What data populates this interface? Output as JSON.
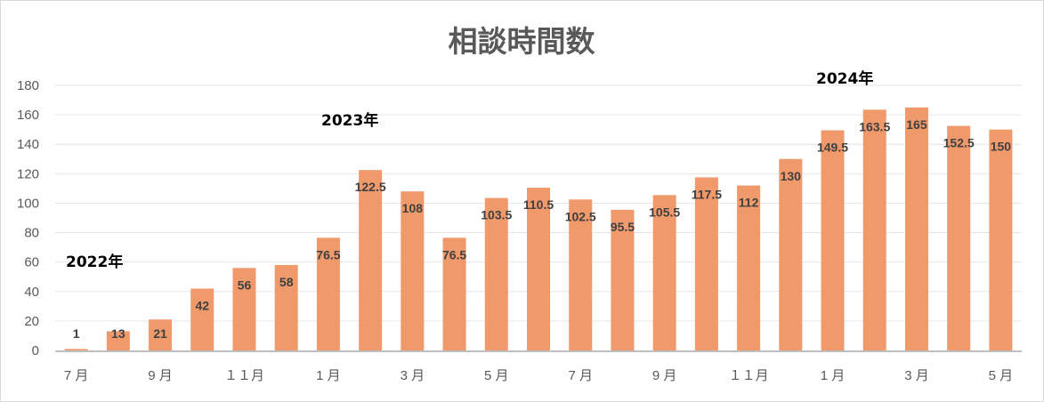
{
  "chart_data": {
    "type": "bar",
    "title": "相談時間数",
    "xlabel": "",
    "ylabel": "",
    "ylim": [
      0,
      180
    ],
    "yticks": [
      0,
      20,
      40,
      60,
      80,
      100,
      120,
      140,
      160,
      180
    ],
    "grid": true,
    "categories": [
      "7月",
      "",
      "9月",
      "",
      "１１月",
      "",
      "1月",
      "",
      "3月",
      "",
      "5月",
      "",
      "7月",
      "",
      "9月",
      "",
      "１１月",
      "",
      "1月",
      "",
      "3月",
      "",
      "5月"
    ],
    "values": [
      1,
      13,
      21,
      42,
      56,
      58,
      76.5,
      122.5,
      108,
      76.5,
      103.5,
      110.5,
      102.5,
      95.5,
      105.5,
      117.5,
      112,
      130,
      149.5,
      163.5,
      165,
      152.5,
      150
    ],
    "x_tick_labels": [
      "7 月",
      "9 月",
      "１１月",
      "1 月",
      "3 月",
      "5 月",
      "7 月",
      "9 月",
      "１１月",
      "1 月",
      "3 月",
      "5 月"
    ],
    "annotations": [
      {
        "text": "2022年",
        "at_index": 0
      },
      {
        "text": "2023年",
        "at_index": 6
      },
      {
        "text": "2024年",
        "at_index": 18
      }
    ],
    "bar_color": "#f0996b"
  }
}
